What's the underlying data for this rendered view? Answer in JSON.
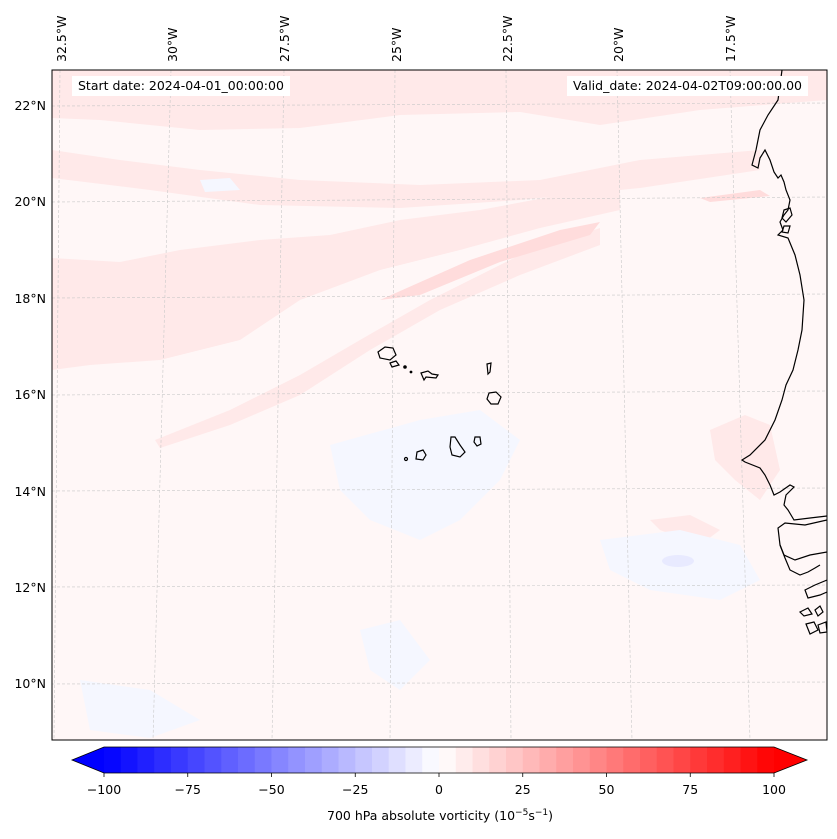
{
  "map": {
    "projection_region": "Eastern tropical North Atlantic, Cape Verde Islands and West African coast",
    "lon_labels": [
      "32.5°W",
      "30°W",
      "27.5°W",
      "25°W",
      "22.5°W",
      "20°W",
      "17.5°W"
    ],
    "lat_labels": [
      "22°N",
      "20°N",
      "18°N",
      "16°N",
      "14°N",
      "12°N",
      "10°N"
    ],
    "gridlines": "dashed light gray",
    "start_date_text": "Start date: 2024-04-01_00:00:00",
    "valid_date_text": "Valid_date: 2024-04-02T09:00:00.00",
    "field_description": "Mostly near-zero vorticity; weak positive (light red) bands oriented WSW-ENE across northern half, weak negative (light blue) patches south of Cape Verde and off Senegal/Guinea coast",
    "coast_color": "#000000"
  },
  "colorbar": {
    "label_main": "700 hPa absolute vorticity (10",
    "label_exp1": "−5",
    "label_mid": "s",
    "label_exp2": "−1",
    "label_end": ")",
    "min": -100,
    "max": 100,
    "step": 5,
    "extend": "both",
    "cmap": "bwr",
    "ticks": [
      -100,
      -75,
      -50,
      -25,
      0,
      25,
      50,
      75,
      100
    ],
    "tick_labels": [
      "−100",
      "−75",
      "−50",
      "−25",
      "0",
      "25",
      "50",
      "75",
      "100"
    ],
    "low_color": "#0000ff",
    "mid_color": "#ffffff",
    "high_color": "#ff0000"
  }
}
